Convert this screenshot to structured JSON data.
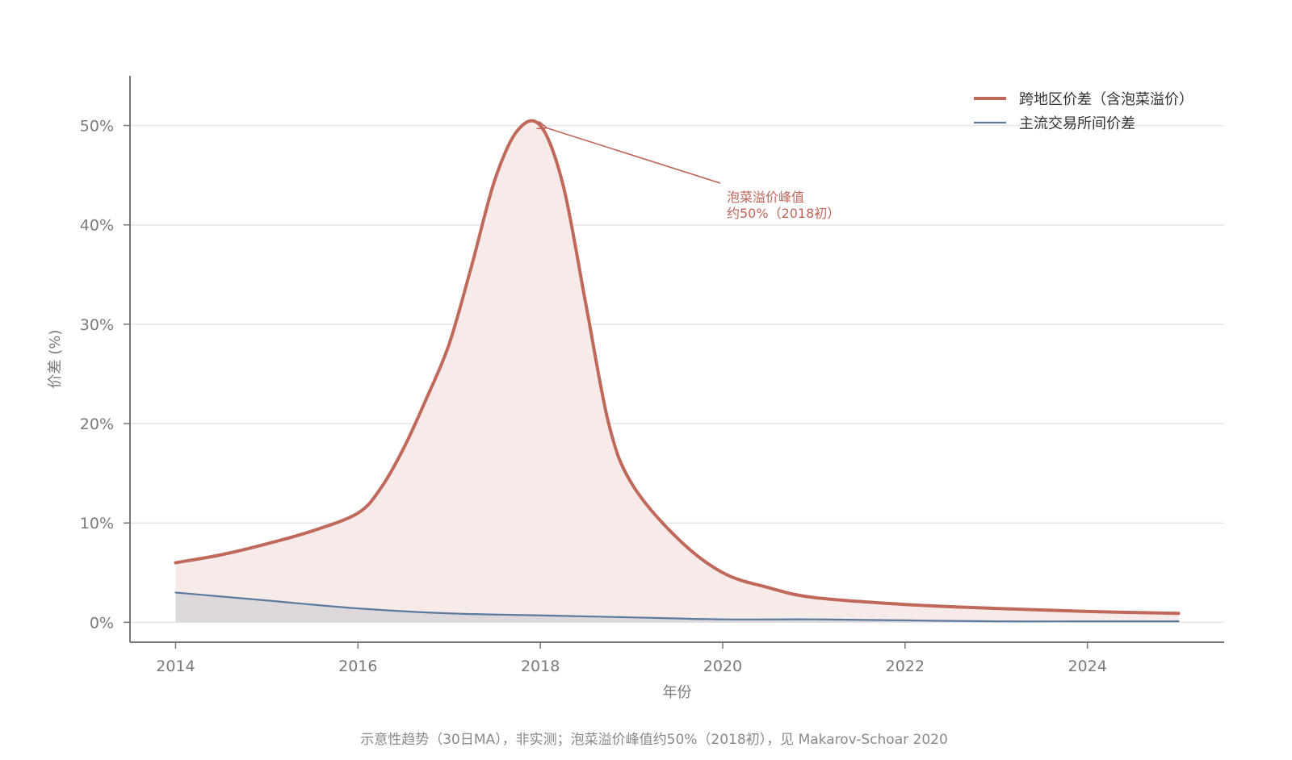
{
  "chart_data": {
    "type": "area",
    "xlabel": "年份",
    "ylabel": "价差 (%)",
    "xlim": [
      2013.5,
      2025.5
    ],
    "ylim": [
      -2,
      55
    ],
    "x_ticks": [
      2014,
      2016,
      2018,
      2020,
      2022,
      2024
    ],
    "x_tick_labels": [
      "2014",
      "2016",
      "2018",
      "2020",
      "2022",
      "2024"
    ],
    "y_ticks": [
      0,
      10,
      20,
      30,
      40,
      50
    ],
    "y_tick_labels": [
      "0%",
      "10%",
      "20%",
      "30%",
      "40%",
      "50%"
    ],
    "grid": "horizontal",
    "legend_position": "top-right",
    "series": [
      {
        "name": "跨地区价差（含泡菜溢价）",
        "color": "#c0695b",
        "fill": "#f6ebe9",
        "x": [
          2014,
          2014.5,
          2015,
          2015.5,
          2016,
          2016.25,
          2016.5,
          2016.75,
          2017,
          2017.25,
          2017.5,
          2017.75,
          2018,
          2018.25,
          2018.5,
          2018.75,
          2019,
          2019.5,
          2020,
          2020.5,
          2021,
          2022,
          2023,
          2024,
          2025
        ],
        "values": [
          6.0,
          6.8,
          7.9,
          9.2,
          11.0,
          13.5,
          17.5,
          22.5,
          28.0,
          36.0,
          44.5,
          49.5,
          50.0,
          44.0,
          32.0,
          20.0,
          14.0,
          8.5,
          5.0,
          3.5,
          2.5,
          1.8,
          1.4,
          1.1,
          0.9
        ]
      },
      {
        "name": "主流交易所间价差",
        "color": "#5a7a9e",
        "fill": "#dcd8dc",
        "x": [
          2014,
          2015,
          2016,
          2017,
          2018,
          2019,
          2020,
          2021,
          2022,
          2023,
          2024,
          2025
        ],
        "values": [
          3.0,
          2.2,
          1.4,
          0.9,
          0.7,
          0.5,
          0.3,
          0.3,
          0.2,
          0.1,
          0.1,
          0.1
        ]
      }
    ],
    "annotation": {
      "line1": "泡菜溢价峰值",
      "line2": "约50%（2018初）",
      "x": 2018,
      "y": 50
    },
    "footnote": "示意性趋势（30日MA），非实测；泡菜溢价峰值约50%（2018初），见 Makarov-Schoar 2020"
  }
}
